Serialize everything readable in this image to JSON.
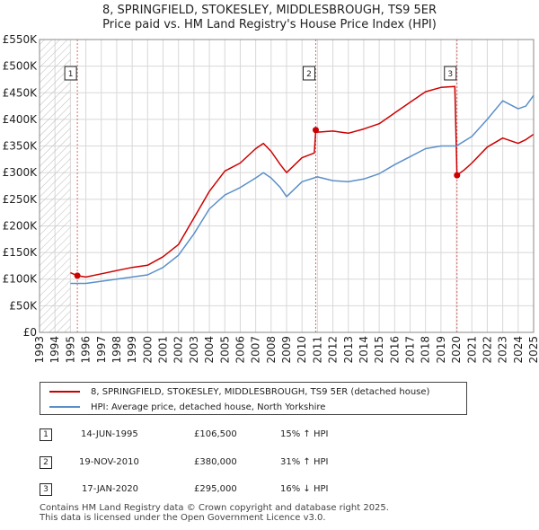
{
  "title_line1": "8, SPRINGFIELD, STOKESLEY, MIDDLESBROUGH, TS9 5ER",
  "title_line2": "Price paid vs. HM Land Registry's House Price Index (HPI)",
  "colors": {
    "property": "#cc0000",
    "hpi": "#5b8fc9",
    "vline": "#e06666",
    "grid": "#d8d8d8"
  },
  "chart_data": {
    "type": "line",
    "x_unit": "year",
    "xlim": [
      1993,
      2025
    ],
    "ylim": [
      0,
      550000
    ],
    "yticks": [
      {
        "value": 0,
        "label": "£0"
      },
      {
        "value": 50000,
        "label": "£50K"
      },
      {
        "value": 100000,
        "label": "£100K"
      },
      {
        "value": 150000,
        "label": "£150K"
      },
      {
        "value": 200000,
        "label": "£200K"
      },
      {
        "value": 250000,
        "label": "£250K"
      },
      {
        "value": 300000,
        "label": "£300K"
      },
      {
        "value": 350000,
        "label": "£350K"
      },
      {
        "value": 400000,
        "label": "£400K"
      },
      {
        "value": 450000,
        "label": "£450K"
      },
      {
        "value": 500000,
        "label": "£500K"
      },
      {
        "value": 550000,
        "label": "£550K"
      }
    ],
    "xticks": [
      "1993",
      "1994",
      "1995",
      "1996",
      "1997",
      "1998",
      "1999",
      "2000",
      "2001",
      "2002",
      "2003",
      "2004",
      "2005",
      "2006",
      "2007",
      "2008",
      "2009",
      "2010",
      "2011",
      "2012",
      "2013",
      "2014",
      "2015",
      "2016",
      "2017",
      "2018",
      "2019",
      "2020",
      "2021",
      "2022",
      "2023",
      "2024",
      "2025"
    ],
    "hatched_until": 1995.0,
    "series": [
      {
        "name": "8, SPRINGFIELD, STOKESLEY, MIDDLESBROUGH, TS9 5ER (detached house)",
        "key": "property",
        "points": [
          [
            1995.0,
            112000
          ],
          [
            1995.45,
            106500
          ],
          [
            1996.0,
            104000
          ],
          [
            1997.0,
            110000
          ],
          [
            1998.0,
            116000
          ],
          [
            1999.0,
            122000
          ],
          [
            2000.0,
            126000
          ],
          [
            2001.0,
            142000
          ],
          [
            2002.0,
            165000
          ],
          [
            2003.0,
            215000
          ],
          [
            2004.0,
            265000
          ],
          [
            2005.0,
            303000
          ],
          [
            2006.0,
            318000
          ],
          [
            2007.0,
            345000
          ],
          [
            2007.5,
            355000
          ],
          [
            2008.0,
            340000
          ],
          [
            2008.6,
            315000
          ],
          [
            2009.0,
            300000
          ],
          [
            2010.0,
            328000
          ],
          [
            2010.8,
            337000
          ],
          [
            2010.89,
            380000
          ],
          [
            2011.0,
            376000
          ],
          [
            2012.0,
            378000
          ],
          [
            2013.0,
            374000
          ],
          [
            2014.0,
            382000
          ],
          [
            2015.0,
            392000
          ],
          [
            2016.0,
            412000
          ],
          [
            2017.0,
            432000
          ],
          [
            2018.0,
            452000
          ],
          [
            2019.0,
            460000
          ],
          [
            2019.9,
            462000
          ],
          [
            2020.04,
            295000
          ],
          [
            2020.5,
            305000
          ],
          [
            2021.0,
            318000
          ],
          [
            2022.0,
            348000
          ],
          [
            2023.0,
            365000
          ],
          [
            2024.0,
            355000
          ],
          [
            2024.5,
            362000
          ],
          [
            2025.0,
            372000
          ]
        ]
      },
      {
        "name": "HPI: Average price, detached house, North Yorkshire",
        "key": "hpi",
        "points": [
          [
            1995.0,
            92000
          ],
          [
            1996.0,
            92000
          ],
          [
            1997.0,
            96000
          ],
          [
            1998.0,
            100000
          ],
          [
            1999.0,
            104000
          ],
          [
            2000.0,
            108000
          ],
          [
            2001.0,
            122000
          ],
          [
            2002.0,
            145000
          ],
          [
            2003.0,
            185000
          ],
          [
            2004.0,
            232000
          ],
          [
            2005.0,
            258000
          ],
          [
            2006.0,
            272000
          ],
          [
            2007.0,
            290000
          ],
          [
            2007.5,
            300000
          ],
          [
            2008.0,
            290000
          ],
          [
            2008.6,
            272000
          ],
          [
            2009.0,
            255000
          ],
          [
            2010.0,
            283000
          ],
          [
            2011.0,
            292000
          ],
          [
            2012.0,
            285000
          ],
          [
            2013.0,
            283000
          ],
          [
            2014.0,
            288000
          ],
          [
            2015.0,
            298000
          ],
          [
            2016.0,
            315000
          ],
          [
            2017.0,
            330000
          ],
          [
            2018.0,
            345000
          ],
          [
            2019.0,
            350000
          ],
          [
            2020.0,
            350000
          ],
          [
            2021.0,
            368000
          ],
          [
            2022.0,
            400000
          ],
          [
            2023.0,
            435000
          ],
          [
            2024.0,
            420000
          ],
          [
            2024.5,
            425000
          ],
          [
            2025.0,
            445000
          ]
        ]
      }
    ],
    "markers": [
      {
        "label": "1",
        "x": 1995.45,
        "value": 106500
      },
      {
        "label": "2",
        "x": 2010.89,
        "value": 380000
      },
      {
        "label": "3",
        "x": 2020.04,
        "value": 295000
      }
    ]
  },
  "legend": {
    "property_label": "8, SPRINGFIELD, STOKESLEY, MIDDLESBROUGH, TS9 5ER (detached house)",
    "hpi_label": "HPI: Average price, detached house, North Yorkshire"
  },
  "transactions": [
    {
      "num": "1",
      "date": "14-JUN-1995",
      "price": "£106,500",
      "hpi": "15% ↑ HPI"
    },
    {
      "num": "2",
      "date": "19-NOV-2010",
      "price": "£380,000",
      "hpi": "31% ↑ HPI"
    },
    {
      "num": "3",
      "date": "17-JAN-2020",
      "price": "£295,000",
      "hpi": "16% ↓ HPI"
    }
  ],
  "footer_line1": "Contains HM Land Registry data © Crown copyright and database right 2025.",
  "footer_line2": "This data is licensed under the Open Government Licence v3.0."
}
